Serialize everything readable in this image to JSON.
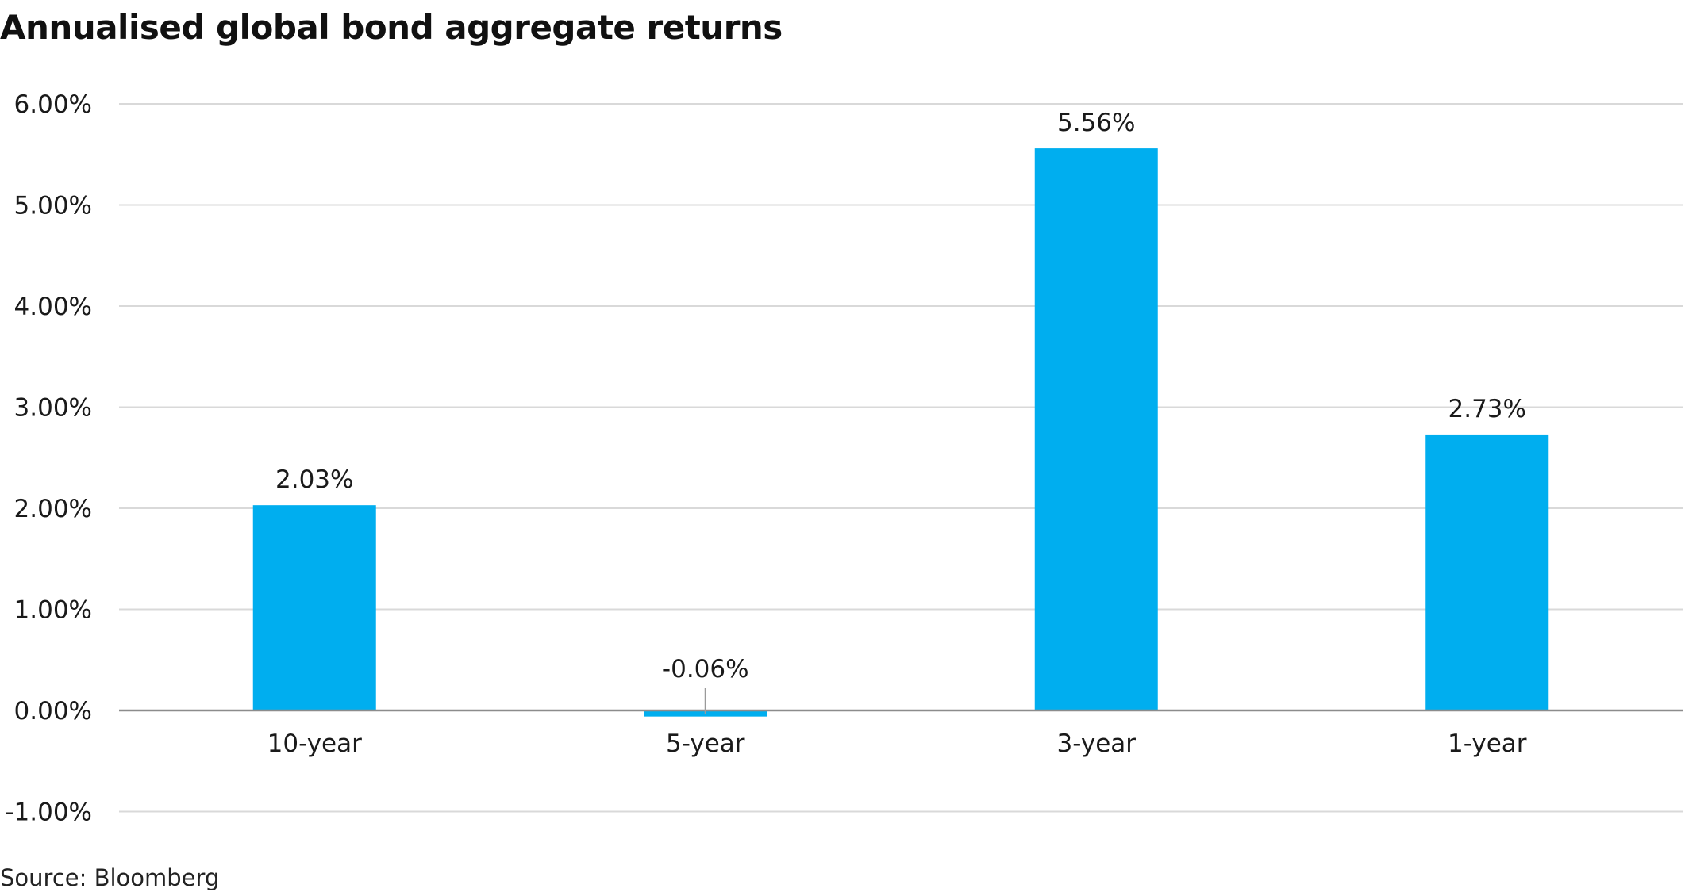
{
  "title": "Annualised global bond aggregate returns",
  "source": "Source: Bloomberg",
  "colors": {
    "bar": "#00AEEF",
    "grid": "#d9d9d9",
    "baseline": "#8c8c8c",
    "text": "#1a1a1a"
  },
  "chart_data": {
    "type": "bar",
    "categories": [
      "10-year",
      "5-year",
      "3-year",
      "1-year"
    ],
    "values": [
      2.03,
      -0.06,
      5.56,
      2.73
    ],
    "data_labels": [
      "2.03%",
      "-0.06%",
      "5.56%",
      "2.73%"
    ],
    "title": "Annualised global bond aggregate returns",
    "xlabel": "",
    "ylabel": "",
    "ylim": [
      -1,
      6
    ],
    "yticks": [
      6,
      5,
      4,
      3,
      2,
      1,
      0,
      -1
    ],
    "ytick_labels": [
      "6.00%",
      "5.00%",
      "4.00%",
      "3.00%",
      "2.00%",
      "1.00%",
      "0.00%",
      "-1.00%"
    ],
    "grid": true,
    "legend": "none"
  }
}
